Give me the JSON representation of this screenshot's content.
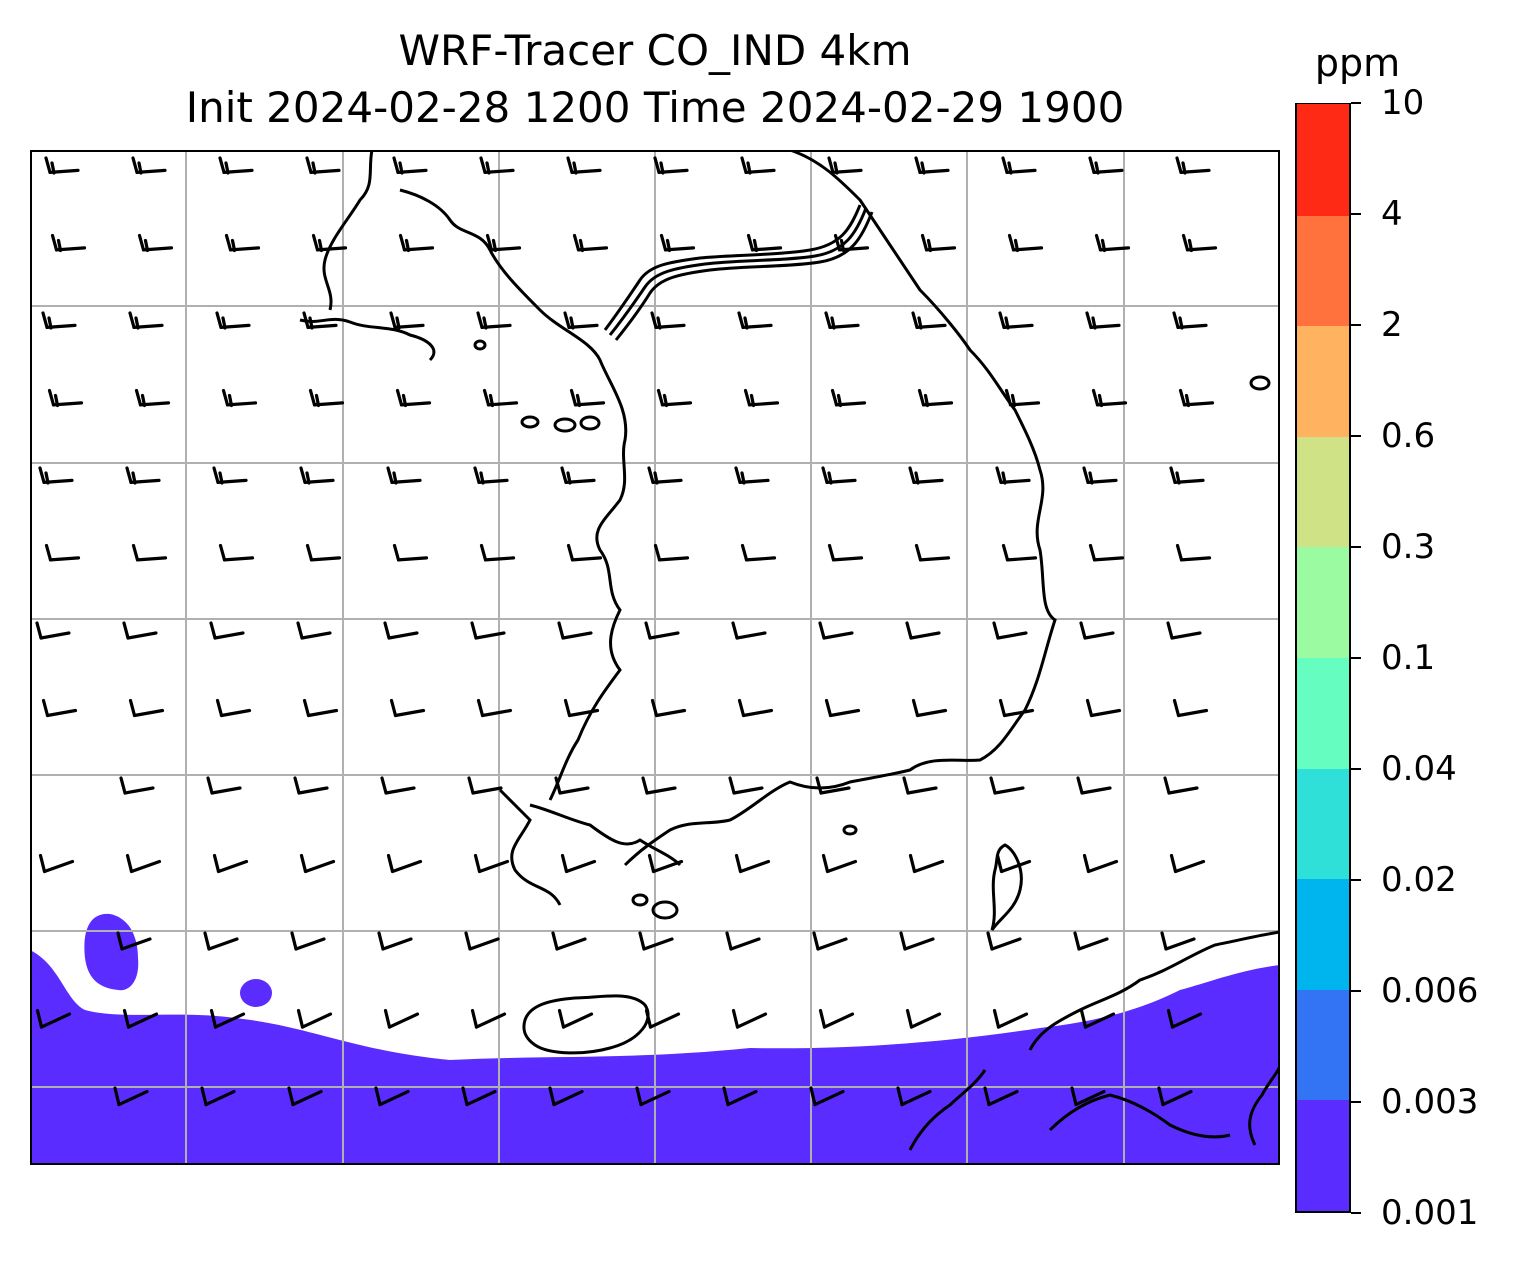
{
  "title_line1": "WRF-Tracer CO_IND 4km",
  "title_line2": "Init 2024-02-28 1200 Time 2024-02-29 1900",
  "colorbar": {
    "unit": "ppm",
    "ticks": [
      "0.001",
      "0.003",
      "0.006",
      "0.02",
      "0.04",
      "0.1",
      "0.3",
      "0.6",
      "2",
      "4",
      "10"
    ],
    "colors": [
      "#5b2cff",
      "#3374f4",
      "#00b4ee",
      "#2ee0d8",
      "#66fdc0",
      "#9afba0",
      "#cfe285",
      "#ffb360",
      "#ff713d",
      "#ff2a16"
    ]
  },
  "map": {
    "coastline_color": "#000000",
    "grid_color": "#b0b0b0",
    "shaded_level_color": "#5b2cff",
    "wind_barbs": "wind barbs pointing to the west, with the shaft angled slightly northward at the southern edge"
  }
}
